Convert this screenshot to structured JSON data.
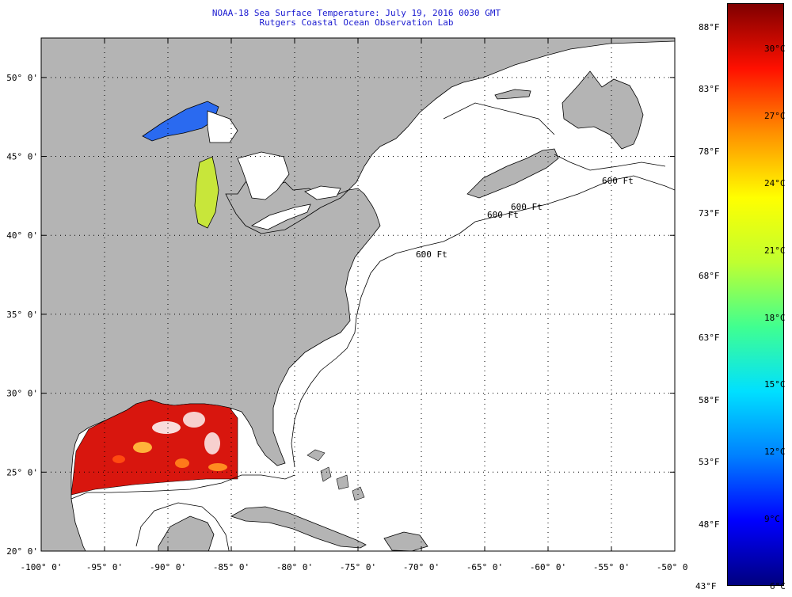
{
  "title": {
    "line1": "NOAA-18 Sea Surface Temperature:  July 19, 2016 0030 GMT",
    "line2": "Rutgers Coastal Ocean Observation Lab"
  },
  "map": {
    "lon_range": [
      -100,
      -50
    ],
    "lat_range": [
      20,
      52.5
    ],
    "lon_ticks": [
      "-100° 0'",
      "-95° 0'",
      "-90° 0'",
      "-85° 0'",
      "-80° 0'",
      "-75° 0'",
      "-70° 0'",
      "-65° 0'",
      "-60° 0'",
      "-55° 0'",
      "-50° 0'"
    ],
    "lat_ticks": [
      "20° 0'",
      "25° 0'",
      "30° 0'",
      "35° 0'",
      "40° 0'",
      "45° 0'",
      "50° 0'"
    ],
    "contour_labels": [
      "600 Ft",
      "600 Ft",
      "600 Ft",
      "600 Ft"
    ],
    "colors": {
      "land": "#b4b4b4",
      "ocean_no_data": "#ffffff",
      "grid": "#000000",
      "title": "#1a1ad0"
    }
  },
  "colorbar": {
    "fahrenheit": [
      "88°F",
      "83°F",
      "78°F",
      "73°F",
      "68°F",
      "63°F",
      "58°F",
      "53°F",
      "48°F",
      "43°F"
    ],
    "celsius": [
      "30°C",
      "27°C",
      "24°C",
      "21°C",
      "18°C",
      "15°C",
      "12°C",
      "9°C",
      "6°C"
    ],
    "gradient": [
      "#00007f",
      "#0000ff",
      "#0080ff",
      "#00e0ff",
      "#40ff90",
      "#c0ff30",
      "#ffff00",
      "#ff9000",
      "#ff1000",
      "#7f0000"
    ]
  }
}
